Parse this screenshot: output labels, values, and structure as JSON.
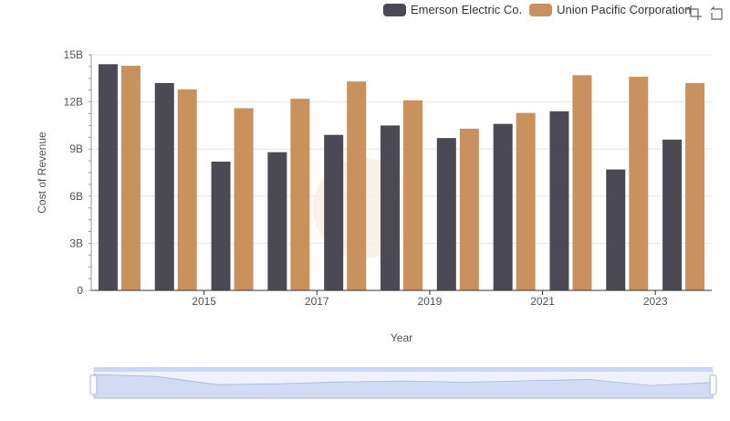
{
  "chart_data": {
    "type": "bar",
    "x": [
      2014,
      2015,
      2016,
      2017,
      2018,
      2019,
      2020,
      2021,
      2022,
      2023,
      2024
    ],
    "x_tick_labels": [
      "2015",
      "2017",
      "2019",
      "2021",
      "2023"
    ],
    "series": [
      {
        "name": "Emerson Electric Co.",
        "color": "#4a4954",
        "values": [
          14.4,
          13.2,
          8.2,
          8.8,
          9.9,
          10.5,
          9.7,
          10.6,
          11.4,
          7.7,
          9.6
        ]
      },
      {
        "name": "Union Pacific Corporation",
        "color": "#c8915e",
        "values": [
          14.3,
          12.8,
          11.6,
          12.2,
          13.3,
          12.1,
          10.3,
          11.3,
          13.7,
          13.6,
          13.2
        ]
      }
    ],
    "xlabel": "Year",
    "ylabel": "Cost of Revenue",
    "ylim": [
      0,
      15
    ],
    "y_ticks": [
      {
        "value": 0,
        "label": "0"
      },
      {
        "value": 3,
        "label": "3B"
      },
      {
        "value": 6,
        "label": "6B"
      },
      {
        "value": 9,
        "label": "9B"
      },
      {
        "value": 12,
        "label": "12B"
      },
      {
        "value": 15,
        "label": "15B"
      }
    ],
    "grid": true,
    "legend_position": "top-right"
  },
  "toolbox": {
    "zoom_icon": "zoom-icon",
    "restore_icon": "restore-icon"
  }
}
